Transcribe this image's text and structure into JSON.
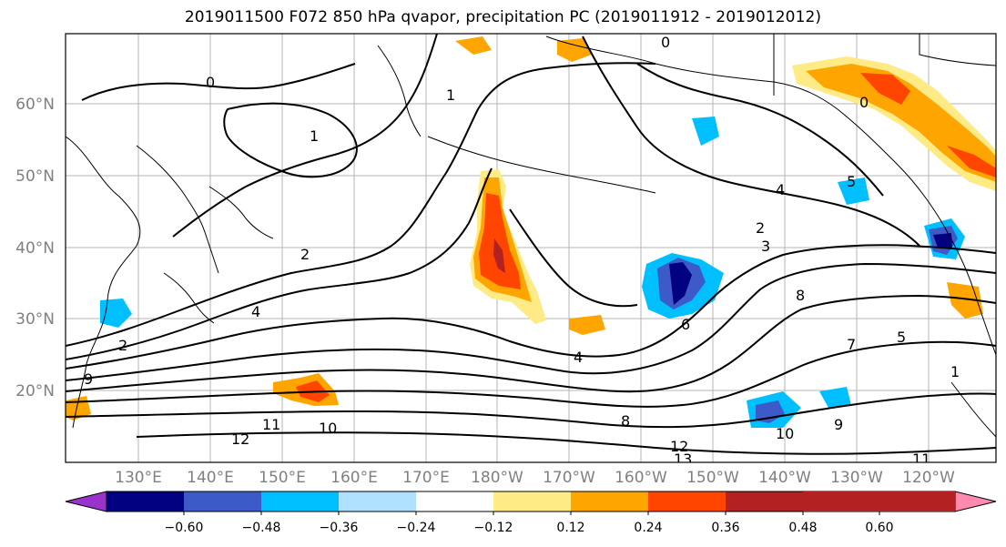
{
  "title": "2019011500 F072 850 hPa qvapor, precipitation PC (2019011912 - 2019012012)",
  "map": {
    "lat_labels": [
      "60°N",
      "50°N",
      "40°N",
      "30°N",
      "20°N"
    ],
    "lon_labels": [
      "130°E",
      "140°E",
      "150°E",
      "160°E",
      "170°E",
      "180°W",
      "170°W",
      "160°W",
      "150°W",
      "140°W",
      "130°W",
      "120°W"
    ],
    "contour_labels": [
      "0",
      "1",
      "1",
      "2",
      "2",
      "2",
      "3",
      "4",
      "4",
      "4",
      "5",
      "5",
      "7",
      "8",
      "8",
      "9",
      "9",
      "10",
      "10",
      "11",
      "11",
      "12",
      "12",
      "13",
      "6",
      "0",
      "0",
      "1"
    ]
  },
  "colorbar": {
    "colors": [
      "#9933cc",
      "#000080",
      "#3c5ac8",
      "#00bfff",
      "#b0e0ff",
      "#ffffff",
      "#ffeb85",
      "#ffa500",
      "#ff4500",
      "#b22222",
      "#ff8ab0"
    ],
    "ticks": [
      "−0.60",
      "−0.48",
      "−0.36",
      "−0.24",
      "−0.12",
      "0.12",
      "0.24",
      "0.36",
      "0.48",
      "0.60"
    ]
  }
}
